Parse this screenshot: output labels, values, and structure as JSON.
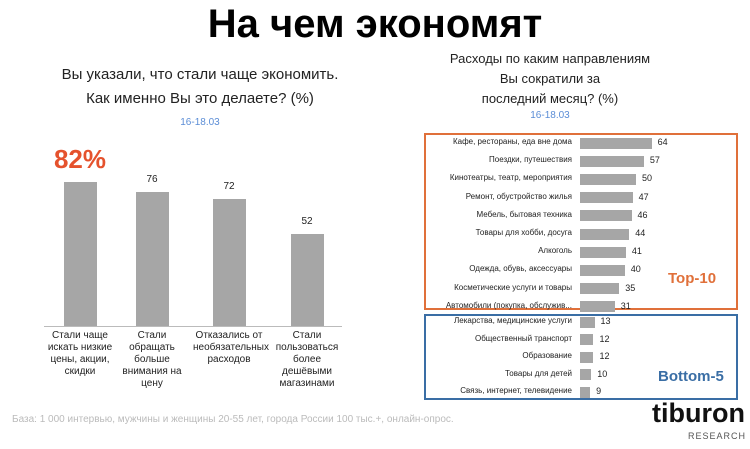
{
  "title": "На чем экономят",
  "footnote": "База: 1 000 интервью, мужчины и женщины 20-55 лет, города России 100 тыс.+, онлайн-опрос.",
  "logo": {
    "name": "tiburon",
    "sub": "RESEARCH"
  },
  "chart_data": [
    {
      "type": "bar",
      "title": [
        "Вы указали, что стали чаще экономить.",
        "Как именно Вы это делаете? (%)"
      ],
      "subtitle": "16-18.03",
      "categories": [
        "Стали чаще искать низкие цены, акции, скидки",
        "Стали обращать больше внимания на цену",
        "Отказались от необязательных расходов",
        "Стали пользоваться более дешёвыми магазинами"
      ],
      "values": [
        82,
        76,
        72,
        52
      ],
      "value_labels": [
        "82%",
        "76",
        "72",
        "52"
      ],
      "color": "#a6a6a6",
      "highlight_color": "#e5522d"
    },
    {
      "type": "hbar",
      "title": [
        "Расходы по каким направлениям",
        "Вы сократили за",
        "последний месяц? (%)"
      ],
      "subtitle": "16-18.03",
      "color": "#a6a6a6",
      "groups": [
        {
          "label": "Top-10",
          "color": "#e0703a",
          "categories": [
            "Кафе, рестораны, еда вне дома",
            "Поездки, путешествия",
            "Кинотеатры, театр, мероприятия",
            "Ремонт, обустройство жилья",
            "Мебель, бытовая техника",
            "Товары для хобби, досуга",
            "Алкоголь",
            "Одежда, обувь, аксессуары",
            "Косметические услуги и товары",
            "Автомобили (покупка, обслужив..."
          ],
          "values": [
            64,
            57,
            50,
            47,
            46,
            44,
            41,
            40,
            35,
            31
          ]
        },
        {
          "label": "Bottom-5",
          "color": "#3a6ea5",
          "categories": [
            "Лекарства, медицинские услуги",
            "Общественный транспорт",
            "Образование",
            "Товары для детей",
            "Связь, интернет, телевидение"
          ],
          "values": [
            13,
            12,
            12,
            10,
            9
          ]
        }
      ]
    }
  ]
}
